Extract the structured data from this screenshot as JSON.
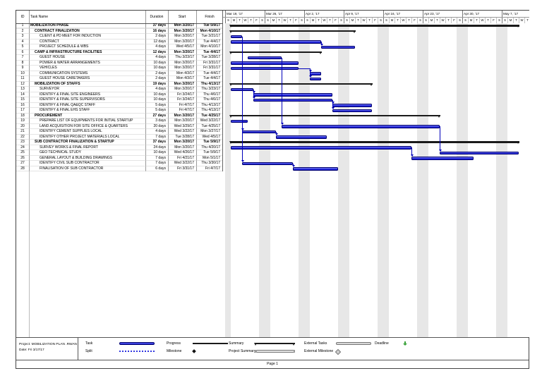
{
  "table": {
    "columns": [
      "ID",
      "Task Name",
      "Duration",
      "Start",
      "Finish"
    ],
    "tasks": [
      {
        "id": "1",
        "name": "MOBILIZATION PHASE",
        "duration": "37 days",
        "start": "Mon 3/20/17",
        "finish": "Tue 5/9/17",
        "level": 0,
        "summary": true,
        "d0": 1,
        "d1": 51
      },
      {
        "id": "2",
        "name": "CONTRACT FINALIZATION",
        "duration": "16 days",
        "start": "Mon 3/20/17",
        "finish": "Mon 4/10/17",
        "level": 1,
        "summary": true,
        "d0": 1,
        "d1": 22
      },
      {
        "id": "3",
        "name": "CLIENT & PD MEET FOR INDUCTION",
        "duration": "2 days",
        "start": "Mon 3/20/17",
        "finish": "Tue 3/21/17",
        "level": 2,
        "summary": false,
        "d0": 1,
        "d1": 2
      },
      {
        "id": "4",
        "name": "CONTRACT",
        "duration": "12 days",
        "start": "Mon 3/20/17",
        "finish": "Tue 4/4/17",
        "level": 2,
        "summary": false,
        "d0": 1,
        "d1": 16
      },
      {
        "id": "5",
        "name": "PROJECT SCHEDULE & WBS",
        "duration": "4 days",
        "start": "Wed 4/5/17",
        "finish": "Mon 4/10/17",
        "level": 2,
        "summary": false,
        "d0": 17,
        "d1": 22
      },
      {
        "id": "6",
        "name": "CAMP & INFRASTRUCTURE FACILITIES",
        "duration": "12 days",
        "start": "Mon 3/20/17",
        "finish": "Tue 4/4/17",
        "level": 1,
        "summary": true,
        "d0": 1,
        "d1": 16
      },
      {
        "id": "7",
        "name": "GUEST HOUSE",
        "duration": "4 days",
        "start": "Thu 3/23/17",
        "finish": "Tue 3/28/17",
        "level": 2,
        "summary": false,
        "d0": 4,
        "d1": 9
      },
      {
        "id": "8",
        "name": "POWER & WATER ARRANGEMENTS",
        "duration": "10 days",
        "start": "Mon 3/20/17",
        "finish": "Fri 3/31/17",
        "level": 2,
        "summary": false,
        "d0": 1,
        "d1": 12
      },
      {
        "id": "9",
        "name": "VEHICLES",
        "duration": "10 days",
        "start": "Mon 3/20/17",
        "finish": "Fri 3/31/17",
        "level": 2,
        "summary": false,
        "d0": 1,
        "d1": 12
      },
      {
        "id": "10",
        "name": "COMMUNICATION SYSTEMS",
        "duration": "2 days",
        "start": "Mon 4/3/17",
        "finish": "Tue 4/4/17",
        "level": 2,
        "summary": false,
        "d0": 15,
        "d1": 16
      },
      {
        "id": "11",
        "name": "GUEST HOUSE CARETAKERS",
        "duration": "2 days",
        "start": "Mon 4/3/17",
        "finish": "Tue 4/4/17",
        "level": 2,
        "summary": false,
        "d0": 15,
        "d1": 16
      },
      {
        "id": "12",
        "name": "MOBILIZATION OF STAFFS",
        "duration": "19 days",
        "start": "Mon 3/20/17",
        "finish": "Thu 4/13/17",
        "level": 1,
        "summary": true,
        "d0": 1,
        "d1": 25
      },
      {
        "id": "13",
        "name": "SURVEYOR",
        "duration": "4 days",
        "start": "Mon 3/20/17",
        "finish": "Thu 3/23/17",
        "level": 2,
        "summary": false,
        "d0": 1,
        "d1": 4
      },
      {
        "id": "14",
        "name": "IDENTIFY & FINAL SITE ENGINEERS",
        "duration": "10 days",
        "start": "Fri 3/24/17",
        "finish": "Thu 4/6/17",
        "level": 2,
        "summary": false,
        "d0": 5,
        "d1": 18
      },
      {
        "id": "15",
        "name": "IDENTIFY & FINAL SITE SUPERVISORS",
        "duration": "10 days",
        "start": "Fri 3/24/17",
        "finish": "Thu 4/6/17",
        "level": 2,
        "summary": false,
        "d0": 5,
        "d1": 18
      },
      {
        "id": "16",
        "name": "IDENTIFY & FINAL QA&QC STAFF",
        "duration": "5 days",
        "start": "Fri 4/7/17",
        "finish": "Thu 4/13/17",
        "level": 2,
        "summary": false,
        "d0": 19,
        "d1": 25
      },
      {
        "id": "17",
        "name": "IDENTIFY & FINAL EHS STAFF",
        "duration": "5 days",
        "start": "Fri 4/7/17",
        "finish": "Thu 4/13/17",
        "level": 2,
        "summary": false,
        "d0": 19,
        "d1": 25
      },
      {
        "id": "18",
        "name": "PROCUREMENT",
        "duration": "27 days",
        "start": "Mon 3/20/17",
        "finish": "Tue 4/25/17",
        "level": 1,
        "summary": true,
        "d0": 1,
        "d1": 37
      },
      {
        "id": "19",
        "name": "PREPARE LIST OF EQUIPMENTS FOR INITIAL STARTUP",
        "duration": "3 days",
        "start": "Mon 3/20/17",
        "finish": "Wed 3/22/17",
        "level": 2,
        "summary": false,
        "d0": 1,
        "d1": 3
      },
      {
        "id": "20",
        "name": "LAND ACQUISITION FOR SITE OFFICE & QUARTERS",
        "duration": "20 days",
        "start": "Wed 3/29/17",
        "finish": "Tue 4/25/17",
        "level": 2,
        "summary": false,
        "d0": 10,
        "d1": 37
      },
      {
        "id": "21",
        "name": "IDENTIFY CEMENT SUPPLIES LOCAL",
        "duration": "4 days",
        "start": "Wed 3/22/17",
        "finish": "Mon 3/27/17",
        "level": 2,
        "summary": false,
        "d0": 3,
        "d1": 8
      },
      {
        "id": "22",
        "name": "IDENTIFY OTHER PROJECT MATERIALS LOCAL",
        "duration": "7 days",
        "start": "Tue 3/28/17",
        "finish": "Wed 4/5/17",
        "level": 2,
        "summary": false,
        "d0": 9,
        "d1": 17
      },
      {
        "id": "23",
        "name": "SUB CONTRACTOR FINALIZATION & STARTUP",
        "duration": "37 days",
        "start": "Mon 3/20/17",
        "finish": "Tue 5/9/17",
        "level": 1,
        "summary": true,
        "d0": 1,
        "d1": 51
      },
      {
        "id": "24",
        "name": "SURVEY WORKS & FINAL REPORT",
        "duration": "24 days",
        "start": "Mon 3/20/17",
        "finish": "Thu 4/20/17",
        "level": 2,
        "summary": false,
        "d0": 1,
        "d1": 32
      },
      {
        "id": "25",
        "name": "GEO TECHNICAL STUDY",
        "duration": "10 days",
        "start": "Wed 4/26/17",
        "finish": "Tue 5/9/17",
        "level": 2,
        "summary": false,
        "d0": 38,
        "d1": 51
      },
      {
        "id": "26",
        "name": "GENERAL LAYOUT & BUILDING DRAWINGS",
        "duration": "7 days",
        "start": "Fri 4/21/17",
        "finish": "Mon 5/1/17",
        "level": 2,
        "summary": false,
        "d0": 33,
        "d1": 43
      },
      {
        "id": "27",
        "name": "IDENTIFY CIVIL SUB CONTRACTOR",
        "duration": "7 days",
        "start": "Wed 3/22/17",
        "finish": "Thu 3/30/17",
        "level": 2,
        "summary": false,
        "d0": 3,
        "d1": 11
      },
      {
        "id": "28",
        "name": "FINALISATION OF SUB CONTRACTOR",
        "duration": "6 days",
        "start": "Fri 3/31/17",
        "finish": "Fri 4/7/17",
        "level": 2,
        "summary": false,
        "d0": 12,
        "d1": 19
      }
    ]
  },
  "timeline": {
    "weeks": [
      "Mar 19, '17",
      "Mar 26, '17",
      "Apr 2, '17",
      "Apr 9, '17",
      "Apr 16, '17",
      "Apr 23, '17",
      "Apr 30, '17",
      "May 7, '17"
    ],
    "day_letters": [
      "S",
      "M",
      "T",
      "W",
      "T",
      "F",
      "S"
    ]
  },
  "links": [
    {
      "from": 3,
      "to": 27
    },
    {
      "from": 4,
      "to": 5
    },
    {
      "from": 9,
      "to": 10
    },
    {
      "from": 9,
      "to": 11
    },
    {
      "from": 13,
      "to": 14
    },
    {
      "from": 13,
      "to": 15
    },
    {
      "from": 15,
      "to": 16
    },
    {
      "from": 15,
      "to": 17
    },
    {
      "from": 7,
      "to": 20
    },
    {
      "from": 19,
      "to": 21
    },
    {
      "from": 21,
      "to": 22
    },
    {
      "from": 20,
      "to": 25
    },
    {
      "from": 24,
      "to": 26
    },
    {
      "from": 27,
      "to": 28
    }
  ],
  "legend": {
    "items": [
      {
        "label": "Task",
        "type": "task",
        "col": 0,
        "row": 0
      },
      {
        "label": "Split",
        "type": "split",
        "col": 0,
        "row": 1
      },
      {
        "label": "Progress",
        "type": "progress",
        "col": 1,
        "row": 0
      },
      {
        "label": "Milestone",
        "type": "milestone",
        "col": 1,
        "row": 1
      },
      {
        "label": "Summary",
        "type": "summary",
        "col": 2,
        "row": 0
      },
      {
        "label": "Project Summary",
        "type": "project-summary",
        "col": 2,
        "row": 1
      },
      {
        "label": "External Tasks",
        "type": "external-tasks",
        "col": 3,
        "row": 0
      },
      {
        "label": "External Milestone",
        "type": "external-milestone",
        "col": 3,
        "row": 1
      },
      {
        "label": "Deadline",
        "type": "deadline",
        "col": 4,
        "row": 0
      }
    ]
  },
  "project_info": {
    "line1": "Project: MOBILIZATION PLAN .RWAN",
    "line2": "Date: Fri 3/17/17"
  },
  "footer": {
    "page_label": "Page 1"
  },
  "colors": {
    "task_bar_top": "#8d93f2",
    "task_bar_mid": "#3136e0",
    "task_bar_bottom": "#1113c9",
    "summary_bar": "#1a1a1a",
    "link": "#0000bb",
    "weekend_shade": "#e7e7e7",
    "external_bar": "#d8d8d8",
    "deadline_green": "#3aa23a"
  }
}
